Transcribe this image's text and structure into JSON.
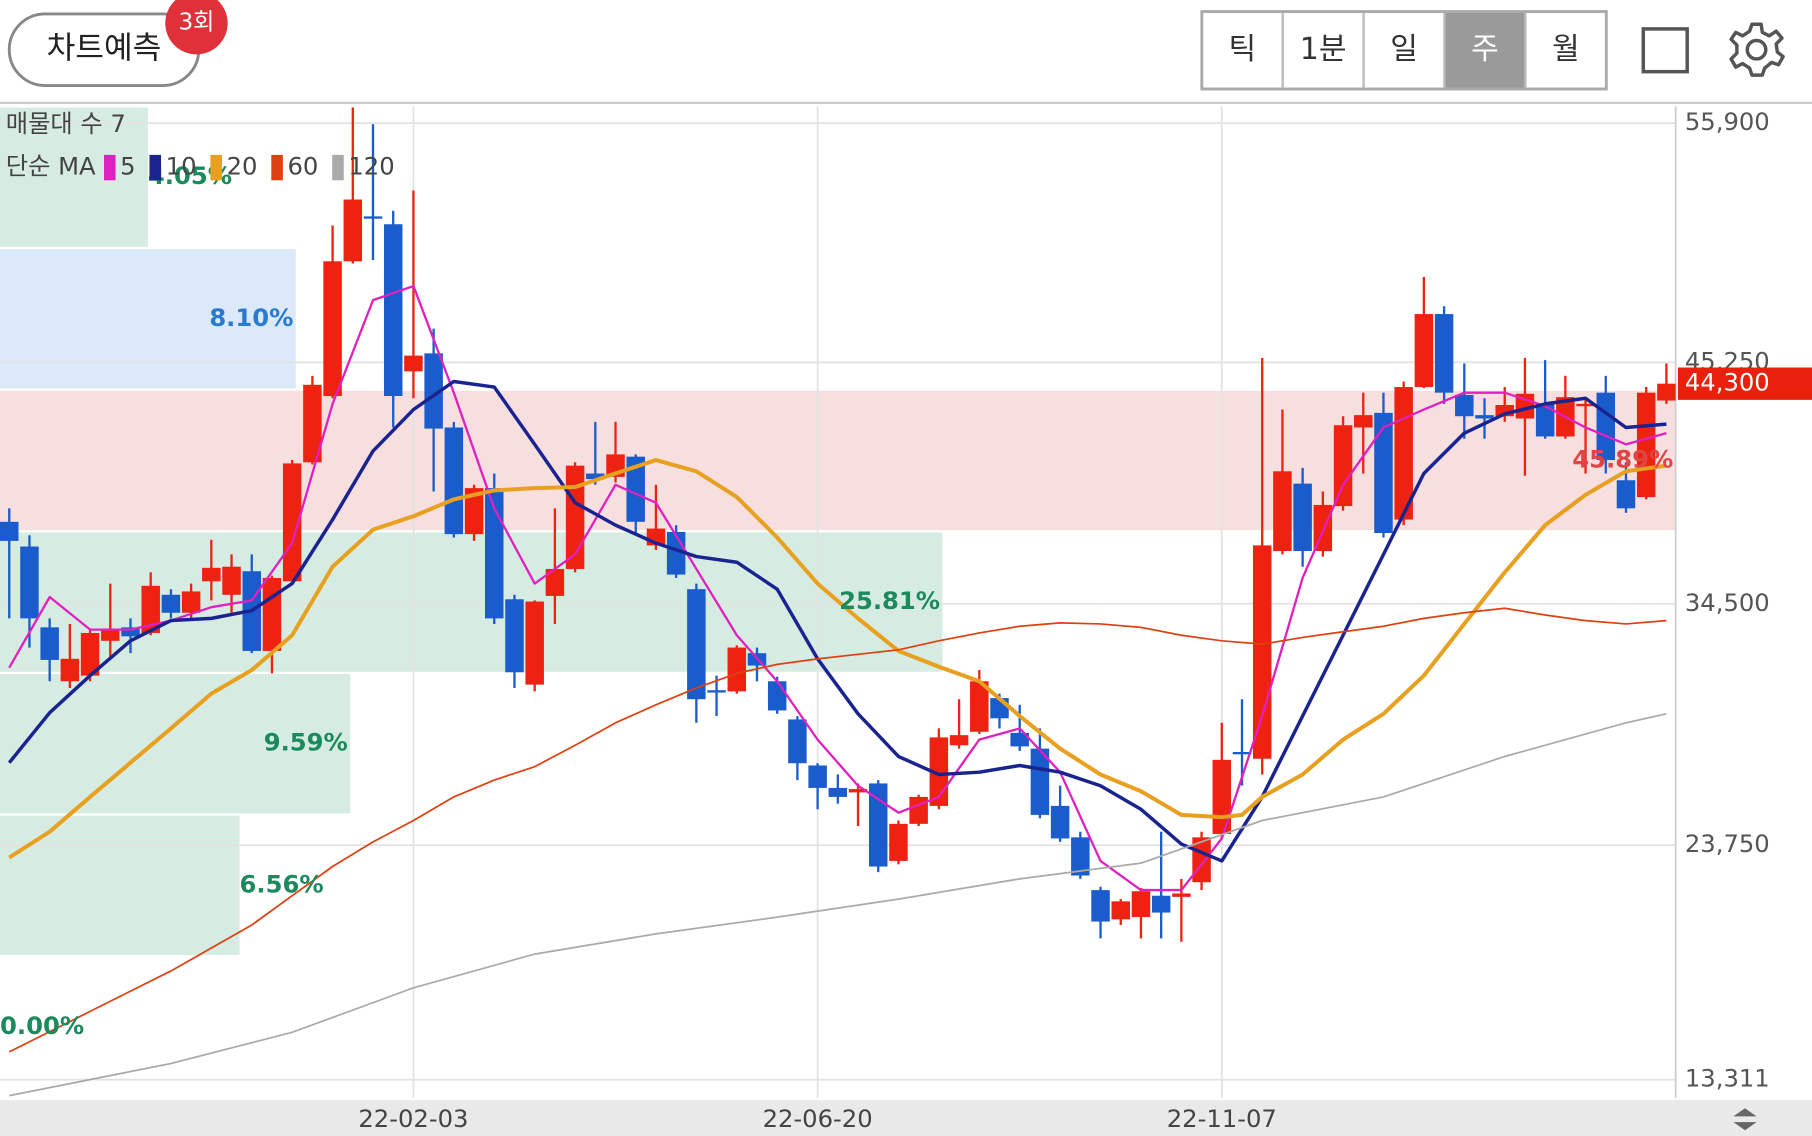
{
  "header": {
    "predict_button": "차트예측",
    "badge": "3회",
    "tabs": [
      "틱",
      "1분",
      "일",
      "주",
      "월"
    ],
    "selected_tab": 3
  },
  "chart_data": {
    "type": "candlestick",
    "profile_label": "매물대 수 7",
    "ma_label": "단순 MA",
    "categories": [
      null,
      null,
      null,
      null,
      null,
      null,
      null,
      null,
      null,
      null,
      null,
      null,
      null,
      null,
      null,
      null,
      null,
      null,
      null,
      null,
      "22-02-03",
      null,
      null,
      null,
      null,
      null,
      null,
      null,
      null,
      null,
      null,
      null,
      null,
      null,
      null,
      null,
      null,
      null,
      null,
      null,
      "22-06-20",
      null,
      null,
      null,
      null,
      null,
      null,
      null,
      null,
      null,
      null,
      null,
      null,
      null,
      null,
      null,
      null,
      null,
      null,
      null,
      "22-11-07",
      null,
      null,
      null,
      null,
      null,
      null,
      null,
      null,
      null,
      null,
      null,
      null,
      null,
      null,
      null,
      null,
      null,
      null,
      null,
      null,
      null,
      null
    ],
    "open": [
      38150,
      37050,
      33450,
      31050,
      31300,
      32850,
      33450,
      33200,
      34900,
      34100,
      35500,
      34900,
      35950,
      32400,
      35500,
      40800,
      43750,
      49750,
      51750,
      51400,
      44850,
      45650,
      42350,
      37600,
      39650,
      34700,
      30900,
      34850,
      36050,
      40300,
      40150,
      41050,
      37100,
      37700,
      35150,
      30650,
      30600,
      32300,
      31050,
      29350,
      27300,
      26300,
      26100,
      26500,
      23050,
      24700,
      25500,
      28200,
      28800,
      30300,
      28750,
      28050,
      25500,
      24100,
      21750,
      20450,
      20550,
      21500,
      21450,
      22100,
      24250,
      27900,
      27600,
      36850,
      39850,
      36850,
      38850,
      42350,
      43000,
      38250,
      44150,
      47400,
      43800,
      42900,
      42850,
      42750,
      43400,
      41950,
      43300,
      43900,
      40000,
      39250,
      43550
    ],
    "high": [
      38750,
      37550,
      33850,
      33600,
      33350,
      35400,
      33850,
      35900,
      35150,
      35400,
      37350,
      36700,
      36700,
      35750,
      40900,
      44650,
      51350,
      56600,
      55850,
      52000,
      52900,
      46750,
      42600,
      39800,
      40300,
      34900,
      34650,
      38750,
      40800,
      42600,
      42600,
      41150,
      39800,
      38000,
      35400,
      31300,
      32650,
      32550,
      31250,
      29500,
      27400,
      26900,
      26500,
      26650,
      24850,
      26000,
      28950,
      30250,
      31550,
      30500,
      30000,
      28950,
      26400,
      24350,
      21900,
      21350,
      21850,
      24350,
      22250,
      24350,
      29200,
      30250,
      45450,
      43150,
      40550,
      39500,
      42850,
      43900,
      43900,
      44400,
      49050,
      47750,
      45200,
      43650,
      44150,
      45450,
      45350,
      44650,
      43650,
      44650,
      40800,
      44150,
      45200
    ],
    "low": [
      33850,
      32550,
      31050,
      30750,
      31050,
      32050,
      32300,
      33100,
      33850,
      33850,
      34650,
      34100,
      32300,
      31400,
      35400,
      40700,
      43650,
      49650,
      49800,
      42350,
      43650,
      39500,
      37450,
      37300,
      33600,
      30750,
      30600,
      33600,
      35900,
      39800,
      39900,
      37600,
      36900,
      35650,
      29200,
      29500,
      30500,
      31050,
      29600,
      26650,
      25350,
      25600,
      24600,
      22550,
      22900,
      24600,
      25350,
      28050,
      28700,
      28950,
      27950,
      24950,
      23900,
      22250,
      19600,
      20200,
      19600,
      19600,
      19450,
      21750,
      24050,
      26400,
      26900,
      36700,
      36150,
      36600,
      38650,
      40300,
      37450,
      38000,
      44100,
      43400,
      41850,
      41850,
      42600,
      40200,
      41850,
      41850,
      40300,
      40300,
      38550,
      39150,
      43400
    ],
    "close": [
      37300,
      33850,
      32000,
      32050,
      33200,
      33350,
      33050,
      35300,
      34100,
      35050,
      36100,
      36150,
      32400,
      35650,
      40750,
      44250,
      49750,
      52500,
      51700,
      43750,
      45550,
      42300,
      37600,
      39650,
      33850,
      31450,
      34600,
      36050,
      40650,
      40050,
      41150,
      38150,
      37850,
      35800,
      30250,
      30550,
      32550,
      31750,
      29750,
      27400,
      26300,
      25900,
      26250,
      22800,
      24700,
      25900,
      28550,
      28650,
      31050,
      29400,
      28150,
      25100,
      24050,
      22400,
      20350,
      21250,
      21700,
      20750,
      21600,
      24100,
      27550,
      27800,
      37100,
      40400,
      36850,
      38900,
      42450,
      42900,
      37650,
      44150,
      47400,
      43900,
      42850,
      42750,
      43350,
      43850,
      41950,
      43700,
      43400,
      40900,
      38750,
      43900,
      44300
    ],
    "up_color": "#ee2211",
    "down_color": "#1a5ccc",
    "series": [
      {
        "name": "5",
        "color": "#e020c0",
        "x": [
          0,
          2,
          4,
          6,
          8,
          10,
          12,
          14,
          16,
          18,
          20,
          22,
          24,
          26,
          28,
          30,
          32,
          34,
          36,
          38,
          40,
          42,
          44,
          46,
          48,
          50,
          52,
          54,
          56,
          58,
          60,
          62,
          64,
          66,
          68,
          70,
          72,
          74,
          76,
          78,
          80,
          82
        ],
        "values": [
          31650,
          34800,
          33350,
          33350,
          33750,
          34350,
          34650,
          37200,
          43400,
          48020,
          48650,
          43900,
          38750,
          35400,
          36700,
          39800,
          39000,
          36050,
          33100,
          31050,
          28450,
          26400,
          25200,
          25900,
          28450,
          28950,
          27000,
          23050,
          21750,
          21750,
          24050,
          29500,
          35650,
          39800,
          42350,
          43150,
          43900,
          43900,
          43300,
          42350,
          41600,
          42100
        ]
      },
      {
        "name": "10",
        "color": "#1a2490",
        "x": [
          0,
          2,
          4,
          6,
          8,
          10,
          12,
          14,
          16,
          18,
          20,
          22,
          24,
          26,
          28,
          30,
          32,
          34,
          36,
          38,
          40,
          42,
          44,
          46,
          48,
          50,
          52,
          54,
          56,
          58,
          60,
          62,
          64,
          66,
          68,
          70,
          72,
          74,
          76,
          78,
          80,
          82
        ],
        "values": [
          27420,
          29650,
          31300,
          32850,
          33750,
          33850,
          34200,
          35400,
          38250,
          41300,
          43150,
          44400,
          44150,
          41600,
          39000,
          38000,
          37200,
          36600,
          36350,
          35150,
          32050,
          29600,
          27700,
          26900,
          27000,
          27300,
          27000,
          26400,
          25350,
          23800,
          23050,
          25900,
          29500,
          33100,
          36700,
          40300,
          42100,
          42950,
          43400,
          43650,
          42350,
          42500
        ]
      },
      {
        "name": "20",
        "color": "#e8a020",
        "x": [
          0,
          2,
          4,
          6,
          8,
          10,
          12,
          14,
          16,
          18,
          20,
          22,
          24,
          26,
          28,
          30,
          32,
          34,
          36,
          38,
          40,
          42,
          44,
          46,
          48,
          50,
          52,
          54,
          56,
          58,
          60,
          61,
          62,
          64,
          66,
          68,
          70,
          72,
          74,
          76,
          78,
          80,
          82
        ],
        "values": [
          23200,
          24350,
          25900,
          27420,
          28950,
          30500,
          31550,
          33100,
          36150,
          37800,
          38400,
          39150,
          39550,
          39650,
          39700,
          40300,
          40900,
          40400,
          39250,
          37450,
          35400,
          33850,
          32400,
          31700,
          31050,
          29500,
          28050,
          26900,
          26150,
          25100,
          25000,
          25100,
          25900,
          26900,
          28450,
          29600,
          31300,
          33600,
          35900,
          38000,
          39350,
          40400,
          40650
        ]
      },
      {
        "name": "60",
        "color": "#e04010",
        "x": [
          0,
          4,
          8,
          12,
          14,
          16,
          18,
          20,
          22,
          24,
          26,
          28,
          30,
          32,
          34,
          36,
          38,
          40,
          42,
          44,
          46,
          48,
          50,
          52,
          54,
          56,
          58,
          60,
          62,
          64,
          66,
          68,
          70,
          72,
          74,
          76,
          78,
          80,
          82
        ],
        "values": [
          14550,
          16350,
          18150,
          20200,
          21500,
          22800,
          23900,
          24850,
          25900,
          26650,
          27250,
          28200,
          29200,
          30000,
          30750,
          31400,
          31800,
          32050,
          32250,
          32450,
          32850,
          33200,
          33500,
          33650,
          33600,
          33450,
          33100,
          32850,
          32700,
          33000,
          33250,
          33500,
          33850,
          34100,
          34300,
          34000,
          33750,
          33600,
          33750
        ]
      },
      {
        "name": "120",
        "color": "#aaaaaa",
        "x": [
          0,
          8,
          14,
          20,
          26,
          32,
          38,
          44,
          50,
          56,
          62,
          68,
          74,
          80,
          82
        ],
        "values": [
          12600,
          14030,
          15420,
          17400,
          18900,
          19800,
          20550,
          21350,
          22250,
          22950,
          24850,
          25900,
          27700,
          29200,
          29600
        ]
      }
    ],
    "volume_profile": {
      "values": [
        4.05,
        8.1,
        45.89,
        25.81,
        9.59,
        6.56,
        0
      ],
      "value_labels": [
        "4.05%",
        "8.10%",
        "45.89%",
        "25.81%",
        "9.59%",
        "6.56%",
        "0.00%"
      ],
      "colors": [
        "#d6ece2",
        "#dbe9f8",
        "#f8dfdf",
        "#d6ece2",
        "#d6ece2",
        "#d6ece2",
        "#d6ece2"
      ],
      "label_colors": [
        "#1b8a5c",
        "#2a7bd0",
        "#e04444",
        "#1b8a5c",
        "#1b8a5c",
        "#1b8a5c",
        "#1b8a5c"
      ]
    },
    "ylim": [
      12500,
      56650
    ],
    "yticks": [
      {
        "value": 13311,
        "label": "13,311"
      },
      {
        "value": 23750,
        "label": "23,750"
      },
      {
        "value": 34500,
        "label": "34,500"
      },
      {
        "value": 45250,
        "label": "45,250"
      },
      {
        "value": 55900,
        "label": "55,900"
      }
    ],
    "current_price": {
      "value": 44300,
      "label": "44,300"
    },
    "current_price_color": "#e8200c",
    "grid": true
  }
}
